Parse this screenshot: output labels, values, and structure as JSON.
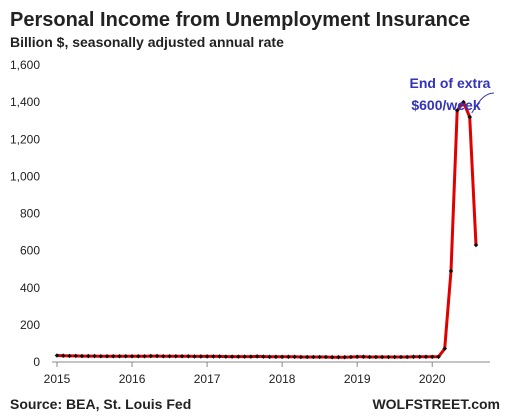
{
  "chart_data": {
    "type": "line",
    "title": "Personal Income from Unemployment Insurance",
    "subtitle": "Billion $, seasonally adjusted annual rate",
    "ylabel": "",
    "xlabel": "",
    "ylim": [
      0,
      1600
    ],
    "xlim": [
      "2015-01",
      "2020-08"
    ],
    "grid": false,
    "line_color": "#e00000",
    "marker_color": "#111111",
    "annotation_color": "#3333bb",
    "y_ticks": [
      {
        "value": 0,
        "label": "0"
      },
      {
        "value": 200,
        "label": "200"
      },
      {
        "value": 400,
        "label": "400"
      },
      {
        "value": 600,
        "label": "600"
      },
      {
        "value": 800,
        "label": "800"
      },
      {
        "value": 1000,
        "label": "1,000"
      },
      {
        "value": 1200,
        "label": "1,200"
      },
      {
        "value": 1400,
        "label": "1,400"
      },
      {
        "value": 1600,
        "label": "1,600"
      }
    ],
    "x_ticks": [
      {
        "date": "2015-01",
        "label": "2015"
      },
      {
        "date": "2016-01",
        "label": "2016"
      },
      {
        "date": "2017-01",
        "label": "2017"
      },
      {
        "date": "2018-01",
        "label": "2018"
      },
      {
        "date": "2019-01",
        "label": "2019"
      },
      {
        "date": "2020-01",
        "label": "2020"
      }
    ],
    "annotation": {
      "lines": [
        "End of extra",
        "$600/week"
      ],
      "target_date": "2020-07"
    },
    "series": [
      {
        "values": [
          {
            "x": "2015-01",
            "y": 35
          },
          {
            "x": "2015-02",
            "y": 34
          },
          {
            "x": "2015-03",
            "y": 33
          },
          {
            "x": "2015-04",
            "y": 33
          },
          {
            "x": "2015-05",
            "y": 32
          },
          {
            "x": "2015-06",
            "y": 32
          },
          {
            "x": "2015-07",
            "y": 32
          },
          {
            "x": "2015-08",
            "y": 31
          },
          {
            "x": "2015-09",
            "y": 31
          },
          {
            "x": "2015-10",
            "y": 31
          },
          {
            "x": "2015-11",
            "y": 31
          },
          {
            "x": "2015-12",
            "y": 31
          },
          {
            "x": "2016-01",
            "y": 31
          },
          {
            "x": "2016-02",
            "y": 31
          },
          {
            "x": "2016-03",
            "y": 31
          },
          {
            "x": "2016-04",
            "y": 32
          },
          {
            "x": "2016-05",
            "y": 32
          },
          {
            "x": "2016-06",
            "y": 31
          },
          {
            "x": "2016-07",
            "y": 31
          },
          {
            "x": "2016-08",
            "y": 31
          },
          {
            "x": "2016-09",
            "y": 31
          },
          {
            "x": "2016-10",
            "y": 31
          },
          {
            "x": "2016-11",
            "y": 30
          },
          {
            "x": "2016-12",
            "y": 30
          },
          {
            "x": "2017-01",
            "y": 30
          },
          {
            "x": "2017-02",
            "y": 30
          },
          {
            "x": "2017-03",
            "y": 30
          },
          {
            "x": "2017-04",
            "y": 29
          },
          {
            "x": "2017-05",
            "y": 29
          },
          {
            "x": "2017-06",
            "y": 29
          },
          {
            "x": "2017-07",
            "y": 29
          },
          {
            "x": "2017-08",
            "y": 29
          },
          {
            "x": "2017-09",
            "y": 30
          },
          {
            "x": "2017-10",
            "y": 29
          },
          {
            "x": "2017-11",
            "y": 28
          },
          {
            "x": "2017-12",
            "y": 28
          },
          {
            "x": "2018-01",
            "y": 28
          },
          {
            "x": "2018-02",
            "y": 28
          },
          {
            "x": "2018-03",
            "y": 28
          },
          {
            "x": "2018-04",
            "y": 27
          },
          {
            "x": "2018-05",
            "y": 27
          },
          {
            "x": "2018-06",
            "y": 27
          },
          {
            "x": "2018-07",
            "y": 27
          },
          {
            "x": "2018-08",
            "y": 27
          },
          {
            "x": "2018-09",
            "y": 26
          },
          {
            "x": "2018-10",
            "y": 26
          },
          {
            "x": "2018-11",
            "y": 26
          },
          {
            "x": "2018-12",
            "y": 27
          },
          {
            "x": "2019-01",
            "y": 28
          },
          {
            "x": "2019-02",
            "y": 28
          },
          {
            "x": "2019-03",
            "y": 27
          },
          {
            "x": "2019-04",
            "y": 27
          },
          {
            "x": "2019-05",
            "y": 27
          },
          {
            "x": "2019-06",
            "y": 27
          },
          {
            "x": "2019-07",
            "y": 27
          },
          {
            "x": "2019-08",
            "y": 27
          },
          {
            "x": "2019-09",
            "y": 27
          },
          {
            "x": "2019-10",
            "y": 28
          },
          {
            "x": "2019-11",
            "y": 28
          },
          {
            "x": "2019-12",
            "y": 28
          },
          {
            "x": "2020-01",
            "y": 28
          },
          {
            "x": "2020-02",
            "y": 28
          },
          {
            "x": "2020-03",
            "y": 72
          },
          {
            "x": "2020-04",
            "y": 490
          },
          {
            "x": "2020-05",
            "y": 1355
          },
          {
            "x": "2020-06",
            "y": 1400
          },
          {
            "x": "2020-07",
            "y": 1320
          },
          {
            "x": "2020-08",
            "y": 630
          }
        ]
      }
    ]
  },
  "footer": {
    "source": "Source: BEA, St. Louis Fed",
    "brand": "WOLFSTREET.com"
  }
}
